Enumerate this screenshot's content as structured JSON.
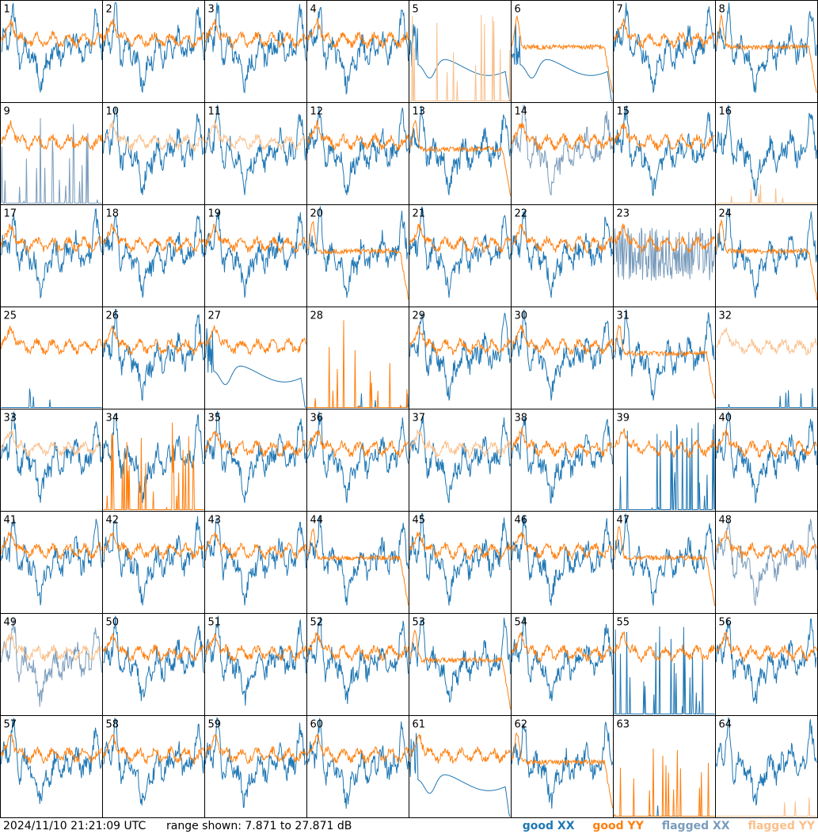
{
  "footer": {
    "timestamp": "2024/11/10 21:21:09 UTC",
    "range_text": "range shown: 7.871 to 27.871 dB"
  },
  "legend": [
    {
      "key": "good_xx",
      "label": "good XX",
      "color": "#1f77b4"
    },
    {
      "key": "good_yy",
      "label": "good YY",
      "color": "#ff7f0e"
    },
    {
      "key": "flagged_xx",
      "label": "flagged XX",
      "color": "#7a9cbc"
    },
    {
      "key": "flagged_yy",
      "label": "flagged YY",
      "color": "#f9c08c"
    }
  ],
  "chart_data": {
    "type": "line",
    "grid_columns": 8,
    "grid_rows": 8,
    "ylim": [
      7.871,
      27.871
    ],
    "yunit": "dB",
    "panel_labels": [
      "1",
      "2",
      "3",
      "4",
      "5",
      "6",
      "7",
      "8",
      "9",
      "10",
      "11",
      "12",
      "13",
      "14",
      "15",
      "16",
      "17",
      "18",
      "19",
      "20",
      "21",
      "22",
      "23",
      "24",
      "25",
      "26",
      "27",
      "28",
      "29",
      "30",
      "31",
      "32",
      "33",
      "34",
      "35",
      "36",
      "37",
      "38",
      "39",
      "40",
      "41",
      "42",
      "43",
      "44",
      "45",
      "46",
      "47",
      "48",
      "49",
      "50",
      "51",
      "52",
      "53",
      "54",
      "55",
      "56",
      "57",
      "58",
      "59",
      "60",
      "61",
      "62",
      "63",
      "64"
    ],
    "series_styles": {
      "good_xx": "#1f77b4",
      "good_yy": "#ff7f0e",
      "flagged_xx": "#7a9cbc",
      "flagged_yy": "#f9c08c"
    },
    "panels": [
      {
        "id": 1,
        "xx": "good",
        "xx_shape": "normal",
        "yy": "good",
        "yy_shape": "normal"
      },
      {
        "id": 2,
        "xx": "good",
        "xx_shape": "normal",
        "yy": "good",
        "yy_shape": "normal"
      },
      {
        "id": 3,
        "xx": "good",
        "xx_shape": "normal",
        "yy": "good",
        "yy_shape": "normal"
      },
      {
        "id": 4,
        "xx": "good",
        "xx_shape": "normal",
        "yy": "good",
        "yy_shape": "normal"
      },
      {
        "id": 5,
        "xx": "good",
        "xx_shape": "smooth",
        "yy": "flagged",
        "yy_shape": "spiky"
      },
      {
        "id": 6,
        "xx": "good",
        "xx_shape": "smooth",
        "yy": "good",
        "yy_shape": "flat"
      },
      {
        "id": 7,
        "xx": "good",
        "xx_shape": "normal",
        "yy": "good",
        "yy_shape": "normal"
      },
      {
        "id": 8,
        "xx": "good",
        "xx_shape": "normal",
        "yy": "good",
        "yy_shape": "flat"
      },
      {
        "id": 9,
        "xx": "flagged",
        "xx_shape": "spiky",
        "yy": "good",
        "yy_shape": "normal"
      },
      {
        "id": 10,
        "xx": "good",
        "xx_shape": "normal",
        "yy": "flagged",
        "yy_shape": "normal"
      },
      {
        "id": 11,
        "xx": "good",
        "xx_shape": "normal",
        "yy": "flagged",
        "yy_shape": "normal"
      },
      {
        "id": 12,
        "xx": "good",
        "xx_shape": "normal",
        "yy": "good",
        "yy_shape": "normal"
      },
      {
        "id": 13,
        "xx": "good",
        "xx_shape": "normal",
        "yy": "good",
        "yy_shape": "flat"
      },
      {
        "id": 14,
        "xx": "flagged",
        "xx_shape": "normal",
        "yy": "good",
        "yy_shape": "normal"
      },
      {
        "id": 15,
        "xx": "good",
        "xx_shape": "normal",
        "yy": "good",
        "yy_shape": "normal"
      },
      {
        "id": 16,
        "xx": "good",
        "xx_shape": "normal",
        "yy": "flagged",
        "yy_shape": "zero"
      },
      {
        "id": 17,
        "xx": "good",
        "xx_shape": "normal",
        "yy": "good",
        "yy_shape": "normal"
      },
      {
        "id": 18,
        "xx": "good",
        "xx_shape": "normal",
        "yy": "good",
        "yy_shape": "normal"
      },
      {
        "id": 19,
        "xx": "good",
        "xx_shape": "normal",
        "yy": "good",
        "yy_shape": "normal"
      },
      {
        "id": 20,
        "xx": "good",
        "xx_shape": "normal",
        "yy": "good",
        "yy_shape": "flat"
      },
      {
        "id": 21,
        "xx": "good",
        "xx_shape": "normal",
        "yy": "good",
        "yy_shape": "normal"
      },
      {
        "id": 22,
        "xx": "good",
        "xx_shape": "normal",
        "yy": "good",
        "yy_shape": "normal"
      },
      {
        "id": 23,
        "xx": "flagged",
        "xx_shape": "noisy",
        "yy": "good",
        "yy_shape": "normal"
      },
      {
        "id": 24,
        "xx": "good",
        "xx_shape": "normal",
        "yy": "good",
        "yy_shape": "flat"
      },
      {
        "id": 25,
        "xx": "good",
        "xx_shape": "zero",
        "yy": "good",
        "yy_shape": "normal"
      },
      {
        "id": 26,
        "xx": "good",
        "xx_shape": "normal",
        "yy": "good",
        "yy_shape": "normal"
      },
      {
        "id": 27,
        "xx": "good",
        "xx_shape": "smooth",
        "yy": "good",
        "yy_shape": "normal"
      },
      {
        "id": 28,
        "xx": "good",
        "xx_shape": "zero",
        "yy": "good",
        "yy_shape": "spiky"
      },
      {
        "id": 29,
        "xx": "good",
        "xx_shape": "normal",
        "yy": "good",
        "yy_shape": "normal"
      },
      {
        "id": 30,
        "xx": "good",
        "xx_shape": "normal",
        "yy": "good",
        "yy_shape": "normal"
      },
      {
        "id": 31,
        "xx": "good",
        "xx_shape": "normal",
        "yy": "good",
        "yy_shape": "flat"
      },
      {
        "id": 32,
        "xx": "good",
        "xx_shape": "zero",
        "yy": "flagged",
        "yy_shape": "normal"
      },
      {
        "id": 33,
        "xx": "good",
        "xx_shape": "normal",
        "yy": "flagged",
        "yy_shape": "normal"
      },
      {
        "id": 34,
        "xx": "good",
        "xx_shape": "normal",
        "yy": "good",
        "yy_shape": "spiky"
      },
      {
        "id": 35,
        "xx": "good",
        "xx_shape": "normal",
        "yy": "good",
        "yy_shape": "normal"
      },
      {
        "id": 36,
        "xx": "good",
        "xx_shape": "normal",
        "yy": "good",
        "yy_shape": "normal"
      },
      {
        "id": 37,
        "xx": "good",
        "xx_shape": "normal",
        "yy": "flagged",
        "yy_shape": "normal"
      },
      {
        "id": 38,
        "xx": "good",
        "xx_shape": "normal",
        "yy": "good",
        "yy_shape": "normal"
      },
      {
        "id": 39,
        "xx": "good",
        "xx_shape": "spiky",
        "yy": "good",
        "yy_shape": "normal"
      },
      {
        "id": 40,
        "xx": "good",
        "xx_shape": "normal",
        "yy": "good",
        "yy_shape": "normal"
      },
      {
        "id": 41,
        "xx": "good",
        "xx_shape": "normal",
        "yy": "good",
        "yy_shape": "normal"
      },
      {
        "id": 42,
        "xx": "good",
        "xx_shape": "normal",
        "yy": "good",
        "yy_shape": "normal"
      },
      {
        "id": 43,
        "xx": "good",
        "xx_shape": "normal",
        "yy": "good",
        "yy_shape": "normal"
      },
      {
        "id": 44,
        "xx": "good",
        "xx_shape": "normal",
        "yy": "good",
        "yy_shape": "flat"
      },
      {
        "id": 45,
        "xx": "good",
        "xx_shape": "normal",
        "yy": "good",
        "yy_shape": "normal"
      },
      {
        "id": 46,
        "xx": "good",
        "xx_shape": "normal",
        "yy": "good",
        "yy_shape": "normal"
      },
      {
        "id": 47,
        "xx": "good",
        "xx_shape": "normal",
        "yy": "good",
        "yy_shape": "flat"
      },
      {
        "id": 48,
        "xx": "flagged",
        "xx_shape": "normal",
        "yy": "good",
        "yy_shape": "normal"
      },
      {
        "id": 49,
        "xx": "flagged",
        "xx_shape": "normal",
        "yy": "flagged",
        "yy_shape": "normal"
      },
      {
        "id": 50,
        "xx": "good",
        "xx_shape": "normal",
        "yy": "good",
        "yy_shape": "normal"
      },
      {
        "id": 51,
        "xx": "good",
        "xx_shape": "normal",
        "yy": "good",
        "yy_shape": "normal"
      },
      {
        "id": 52,
        "xx": "good",
        "xx_shape": "normal",
        "yy": "good",
        "yy_shape": "normal"
      },
      {
        "id": 53,
        "xx": "good",
        "xx_shape": "normal",
        "yy": "good",
        "yy_shape": "flat"
      },
      {
        "id": 54,
        "xx": "good",
        "xx_shape": "normal",
        "yy": "good",
        "yy_shape": "normal"
      },
      {
        "id": 55,
        "xx": "good",
        "xx_shape": "spiky",
        "yy": "good",
        "yy_shape": "normal"
      },
      {
        "id": 56,
        "xx": "good",
        "xx_shape": "normal",
        "yy": "good",
        "yy_shape": "normal"
      },
      {
        "id": 57,
        "xx": "good",
        "xx_shape": "normal",
        "yy": "good",
        "yy_shape": "normal"
      },
      {
        "id": 58,
        "xx": "good",
        "xx_shape": "normal",
        "yy": "good",
        "yy_shape": "normal"
      },
      {
        "id": 59,
        "xx": "good",
        "xx_shape": "normal",
        "yy": "good",
        "yy_shape": "normal"
      },
      {
        "id": 60,
        "xx": "good",
        "xx_shape": "normal",
        "yy": "good",
        "yy_shape": "normal"
      },
      {
        "id": 61,
        "xx": "good",
        "xx_shape": "smooth",
        "yy": "good",
        "yy_shape": "normal"
      },
      {
        "id": 62,
        "xx": "good",
        "xx_shape": "normal",
        "yy": "good",
        "yy_shape": "flat"
      },
      {
        "id": 63,
        "xx": "good",
        "xx_shape": "zero",
        "yy": "good",
        "yy_shape": "spiky"
      },
      {
        "id": 64,
        "xx": "good",
        "xx_shape": "normal",
        "yy": "flagged",
        "yy_shape": "zero"
      }
    ]
  }
}
